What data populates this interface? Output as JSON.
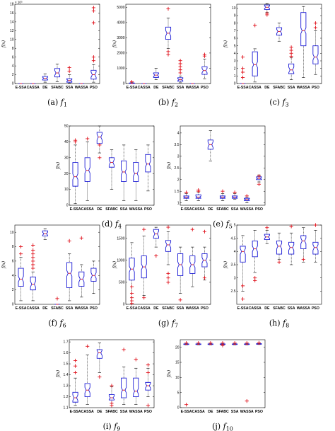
{
  "chart_data": [
    {
      "type": "box",
      "caption": {
        "label": "(a)",
        "func": "f",
        "sub": "1"
      },
      "ylabel": "f(x)",
      "exponent_label": "× 10⁵",
      "ylim": [
        0,
        18
      ],
      "yticks": [
        0,
        2,
        4,
        6,
        8,
        10,
        12,
        14,
        16,
        18
      ],
      "categories": [
        "E-SSA",
        "CASSA",
        "DE",
        "SFABC",
        "SSA",
        "WASSA",
        "PSO"
      ],
      "boxes": [
        {
          "q1": 0,
          "med": 0,
          "q3": 0,
          "lw": 0,
          "uw": 0,
          "outliers": []
        },
        {
          "q1": 0,
          "med": 0,
          "q3": 0,
          "lw": 0,
          "uw": 0,
          "outliers": []
        },
        {
          "q1": 0.8,
          "med": 1.2,
          "q3": 1.6,
          "lw": 0.3,
          "uw": 2.2,
          "outliers": []
        },
        {
          "q1": 1.5,
          "med": 2.4,
          "q3": 3.4,
          "lw": 0.4,
          "uw": 4.4,
          "outliers": []
        },
        {
          "q1": 0.3,
          "med": 0.7,
          "q3": 1.1,
          "lw": 0.1,
          "uw": 2.0,
          "outliers": [
            2.8,
            3.6
          ]
        },
        {
          "q1": 0,
          "med": 0,
          "q3": 0,
          "lw": 0,
          "uw": 0,
          "outliers": []
        },
        {
          "q1": 1.0,
          "med": 2.0,
          "q3": 3.0,
          "lw": 0.3,
          "uw": 4.3,
          "outliers": [
            5.2,
            6.0,
            13.8,
            16.5,
            17.2
          ]
        }
      ]
    },
    {
      "type": "box",
      "caption": {
        "label": "(b)",
        "func": "f",
        "sub": "2"
      },
      "ylabel": "f(x)",
      "ylim": [
        0,
        5200
      ],
      "yticks": [
        0,
        1000,
        2000,
        3000,
        4000,
        5000
      ],
      "categories": [
        "E-SSA",
        "CASSA",
        "DE",
        "SFABC",
        "SSA",
        "WASSA",
        "PSO"
      ],
      "boxes": [
        {
          "q1": 0,
          "med": 20,
          "q3": 40,
          "lw": 0,
          "uw": 60,
          "outliers": [
            110
          ]
        },
        {
          "q1": 0,
          "med": 0,
          "q3": 0,
          "lw": 0,
          "uw": 0,
          "outliers": []
        },
        {
          "q1": 400,
          "med": 550,
          "q3": 700,
          "lw": 250,
          "uw": 1000,
          "outliers": []
        },
        {
          "q1": 2900,
          "med": 3300,
          "q3": 3700,
          "lw": 2300,
          "uw": 4300,
          "outliers": [
            1900,
            2100,
            4900
          ]
        },
        {
          "q1": 150,
          "med": 250,
          "q3": 380,
          "lw": 50,
          "uw": 500,
          "outliers": [
            700,
            900,
            1100,
            1300,
            1500
          ]
        },
        {
          "q1": 0,
          "med": 0,
          "q3": 0,
          "lw": 0,
          "uw": 0,
          "outliers": []
        },
        {
          "q1": 600,
          "med": 850,
          "q3": 1100,
          "lw": 300,
          "uw": 1600,
          "outliers": [
            1800,
            1900
          ]
        }
      ]
    },
    {
      "type": "box",
      "caption": {
        "label": "(c)",
        "func": "f",
        "sub": "3"
      },
      "ylabel": "f(x)",
      "ylim": [
        0,
        10.5
      ],
      "yticks": [
        0,
        1,
        2,
        3,
        4,
        5,
        6,
        7,
        8,
        9,
        10
      ],
      "categories": [
        "E-SSA",
        "CASSA",
        "DE",
        "SFABC",
        "SSA",
        "WASSA",
        "PSO"
      ],
      "boxes": [
        {
          "q1": 0,
          "med": 0,
          "q3": 0,
          "lw": 0,
          "uw": 0,
          "outliers": [
            0.8,
            1.5,
            2.0,
            3.5
          ]
        },
        {
          "q1": 1.0,
          "med": 2.5,
          "q3": 4.2,
          "lw": 0.2,
          "uw": 4.6,
          "outliers": [
            7.7
          ]
        },
        {
          "q1": 9.8,
          "med": 10.1,
          "q3": 10.4,
          "lw": 9.4,
          "uw": 10.6,
          "outliers": [
            9.1,
            9.3
          ]
        },
        {
          "q1": 6.4,
          "med": 6.9,
          "q3": 7.4,
          "lw": 5.6,
          "uw": 8.0,
          "outliers": []
        },
        {
          "q1": 1.3,
          "med": 1.8,
          "q3": 2.6,
          "lw": 0.5,
          "uw": 3.4,
          "outliers": [
            3.6,
            4.0,
            4.4,
            4.8
          ]
        },
        {
          "q1": 5.0,
          "med": 7.0,
          "q3": 9.4,
          "lw": 0.8,
          "uw": 10.2,
          "outliers": []
        },
        {
          "q1": 2.6,
          "med": 3.5,
          "q3": 5.0,
          "lw": 1.2,
          "uw": 7.0,
          "outliers": [
            7.4,
            8.0
          ]
        }
      ]
    },
    {
      "type": "box",
      "caption": {
        "label": "(d)",
        "func": "f",
        "sub": "4"
      },
      "ylabel": "f(x)",
      "ylim": [
        0,
        50
      ],
      "yticks": [
        0,
        10,
        20,
        30,
        40,
        50
      ],
      "categories": [
        "E-SSA",
        "CASSA",
        "DE",
        "SFABC",
        "SSA",
        "WASSA",
        "PSO"
      ],
      "boxes": [
        {
          "q1": 12,
          "med": 18,
          "q3": 27,
          "lw": 1,
          "uw": 38,
          "outliers": [
            40,
            41
          ]
        },
        {
          "q1": 15,
          "med": 22,
          "q3": 30,
          "lw": 3,
          "uw": 40,
          "outliers": [
            42
          ]
        },
        {
          "q1": 39,
          "med": 43,
          "q3": 46,
          "lw": 33,
          "uw": 50,
          "outliers": [
            30,
            38
          ]
        },
        {
          "q1": 24,
          "med": 27,
          "q3": 30,
          "lw": 10,
          "uw": 35,
          "outliers": []
        },
        {
          "q1": 15,
          "med": 21,
          "q3": 28,
          "lw": 3,
          "uw": 38,
          "outliers": [
            51
          ]
        },
        {
          "q1": 15,
          "med": 20,
          "q3": 27,
          "lw": 3,
          "uw": 35,
          "outliers": []
        },
        {
          "q1": 21,
          "med": 26,
          "q3": 32,
          "lw": 9,
          "uw": 38,
          "outliers": []
        }
      ]
    },
    {
      "type": "box",
      "caption": {
        "label": "(e)",
        "func": "f",
        "sub": "5"
      },
      "ylabel": "f(x)",
      "ylim": [
        0.9,
        4.3
      ],
      "yticks": [
        1,
        1.5,
        2,
        2.5,
        3,
        3.5,
        4
      ],
      "categories": [
        "E-SSA",
        "CASSA",
        "DE",
        "SFABC",
        "SSA",
        "WASSA",
        "PSO"
      ],
      "boxes": [
        {
          "q1": 1.2,
          "med": 1.25,
          "q3": 1.3,
          "lw": 1.1,
          "uw": 1.4,
          "outliers": [
            1.45
          ]
        },
        {
          "q1": 1.2,
          "med": 1.25,
          "q3": 1.35,
          "lw": 1.1,
          "uw": 1.45,
          "outliers": [
            1.5,
            1.55
          ]
        },
        {
          "q1": 3.3,
          "med": 3.5,
          "q3": 3.7,
          "lw": 2.8,
          "uw": 4.1,
          "outliers": []
        },
        {
          "q1": 1.2,
          "med": 1.25,
          "q3": 1.3,
          "lw": 1.1,
          "uw": 1.4,
          "outliers": [
            1.5
          ]
        },
        {
          "q1": 1.2,
          "med": 1.25,
          "q3": 1.3,
          "lw": 1.15,
          "uw": 1.4,
          "outliers": [
            1.45
          ]
        },
        {
          "q1": 1.1,
          "med": 1.15,
          "q3": 1.2,
          "lw": 1.0,
          "uw": 1.25,
          "outliers": [
            1.3
          ]
        },
        {
          "q1": 2.0,
          "med": 2.05,
          "q3": 2.12,
          "lw": 1.9,
          "uw": 2.2,
          "outliers": [
            1.8,
            2.15
          ]
        }
      ]
    },
    {
      "type": "box",
      "caption": {
        "label": "(f)",
        "func": "f",
        "sub": "6"
      },
      "ylabel": "f(x)",
      "ylim": [
        0,
        11
      ],
      "yticks": [
        0,
        2,
        4,
        6,
        8,
        10
      ],
      "categories": [
        "E-SSA",
        "CASSA",
        "DE",
        "SFABC",
        "SSA",
        "WASSA",
        "PSO"
      ],
      "boxes": [
        {
          "q1": 2.5,
          "med": 3.5,
          "q3": 5.0,
          "lw": 0.5,
          "uw": 6.5,
          "outliers": [
            7,
            8
          ]
        },
        {
          "q1": 2.0,
          "med": 2.8,
          "q3": 3.8,
          "lw": 0.5,
          "uw": 4.5,
          "outliers": [
            5,
            5.5,
            6,
            6.5,
            7,
            7.5,
            8.2
          ]
        },
        {
          "q1": 9.5,
          "med": 9.8,
          "q3": 10.2,
          "lw": 9.0,
          "uw": 10.5,
          "outliers": []
        },
        {
          "q1": 0,
          "med": 0,
          "q3": 0,
          "lw": 0,
          "uw": 0,
          "outliers": [
            0.8
          ]
        },
        {
          "q1": 2.3,
          "med": 4.3,
          "q3": 5.8,
          "lw": 0.5,
          "uw": 7.0,
          "outliers": [
            8.8
          ]
        },
        {
          "q1": 2.5,
          "med": 3.5,
          "q3": 4.5,
          "lw": 1.0,
          "uw": 5.5,
          "outliers": [
            9.2
          ]
        },
        {
          "q1": 3.2,
          "med": 4.0,
          "q3": 5.0,
          "lw": 1.5,
          "uw": 6.0,
          "outliers": []
        }
      ]
    },
    {
      "type": "box",
      "caption": {
        "label": "(g)",
        "func": "f",
        "sub": "7"
      },
      "ylabel": "f(x)",
      "ylim": [
        0,
        1800
      ],
      "yticks": [
        0,
        500,
        1000,
        1500
      ],
      "categories": [
        "E-SSA",
        "CASSA",
        "DE",
        "SFABC",
        "SSA",
        "WASSA",
        "PSO"
      ],
      "boxes": [
        {
          "q1": 550,
          "med": 800,
          "q3": 1050,
          "lw": 150,
          "uw": 1400,
          "outliers": [
            20,
            80,
            150,
            250,
            400
          ]
        },
        {
          "q1": 600,
          "med": 850,
          "q3": 1100,
          "lw": 200,
          "uw": 1550,
          "outliers": [
            150,
            1700
          ]
        },
        {
          "q1": 1500,
          "med": 1600,
          "q3": 1700,
          "lw": 1300,
          "uw": 1750,
          "outliers": [
            1100
          ]
        },
        {
          "q1": 1200,
          "med": 1350,
          "q3": 1450,
          "lw": 900,
          "uw": 1650,
          "outliers": [
            500,
            600,
            700,
            1750
          ]
        },
        {
          "q1": 650,
          "med": 900,
          "q3": 1150,
          "lw": 250,
          "uw": 1300,
          "outliers": [
            100
          ]
        },
        {
          "q1": 700,
          "med": 900,
          "q3": 1100,
          "lw": 400,
          "uw": 1300,
          "outliers": [
            1700
          ]
        },
        {
          "q1": 850,
          "med": 1000,
          "q3": 1150,
          "lw": 550,
          "uw": 1300,
          "outliers": [
            600,
            1650
          ]
        }
      ]
    },
    {
      "type": "box",
      "caption": {
        "label": "(h)",
        "func": "f",
        "sub": "8"
      },
      "ylabel": "f(x)",
      "ylim": [
        2.0,
        5.0
      ],
      "yticks": [
        2.5,
        3,
        3.5,
        4,
        4.5,
        5
      ],
      "categories": [
        "E-SSA",
        "CASSA",
        "DE",
        "SFABC",
        "SSA",
        "WASSA",
        "PSO"
      ],
      "boxes": [
        {
          "q1": 3.6,
          "med": 4.0,
          "q3": 4.2,
          "lw": 2.5,
          "uw": 4.6,
          "outliers": [
            2.2,
            2.7
          ]
        },
        {
          "q1": 3.8,
          "med": 4.1,
          "q3": 4.4,
          "lw": 3.2,
          "uw": 4.8,
          "outliers": [
            2.9,
            3.0
          ]
        },
        {
          "q1": 4.45,
          "med": 4.55,
          "q3": 4.65,
          "lw": 4.3,
          "uw": 4.8,
          "outliers": [
            4.9
          ]
        },
        {
          "q1": 3.9,
          "med": 4.2,
          "q3": 4.4,
          "lw": 3.7,
          "uw": 4.7,
          "outliers": [
            3.6
          ]
        },
        {
          "q1": 3.9,
          "med": 4.15,
          "q3": 4.35,
          "lw": 3.5,
          "uw": 4.7,
          "outliers": [
            4.95
          ]
        },
        {
          "q1": 4.1,
          "med": 4.4,
          "q3": 4.6,
          "lw": 3.6,
          "uw": 4.9,
          "outliers": [
            3.7
          ]
        },
        {
          "q1": 3.9,
          "med": 4.15,
          "q3": 4.35,
          "lw": 3.6,
          "uw": 4.8,
          "outliers": [
            5.0
          ]
        }
      ]
    },
    {
      "type": "box",
      "caption": {
        "label": "(i)",
        "func": "f",
        "sub": "9"
      },
      "ylabel": "f(x)",
      "ylim": [
        1.1,
        1.72
      ],
      "yticks": [
        1.1,
        1.2,
        1.3,
        1.4,
        1.5,
        1.6,
        1.7
      ],
      "categories": [
        "E-SSA",
        "CASSA",
        "DE",
        "SFABC",
        "SSA",
        "WASSA",
        "PSO"
      ],
      "boxes": [
        {
          "q1": 1.15,
          "med": 1.19,
          "q3": 1.24,
          "lw": 1.12,
          "uw": 1.37,
          "outliers": [
            1.42,
            1.48,
            1.53
          ]
        },
        {
          "q1": 1.2,
          "med": 1.26,
          "q3": 1.32,
          "lw": 1.13,
          "uw": 1.58,
          "outliers": [
            1.66
          ]
        },
        {
          "q1": 1.55,
          "med": 1.6,
          "q3": 1.63,
          "lw": 1.42,
          "uw": 1.69,
          "outliers": [
            1.38
          ]
        },
        {
          "q1": 1.17,
          "med": 1.19,
          "q3": 1.22,
          "lw": 1.14,
          "uw": 1.29,
          "outliers": [
            1.12,
            1.14,
            1.3
          ]
        },
        {
          "q1": 1.19,
          "med": 1.26,
          "q3": 1.37,
          "lw": 1.13,
          "uw": 1.47,
          "outliers": [
            1.63
          ]
        },
        {
          "q1": 1.2,
          "med": 1.25,
          "q3": 1.37,
          "lw": 1.13,
          "uw": 1.46,
          "outliers": [
            1.54
          ]
        },
        {
          "q1": 1.26,
          "med": 1.3,
          "q3": 1.33,
          "lw": 1.2,
          "uw": 1.46,
          "outliers": [
            1.12,
            1.42,
            1.49
          ]
        }
      ]
    },
    {
      "type": "box",
      "caption": {
        "label": "(j)",
        "func": "f",
        "sub": "10"
      },
      "ylabel": "f(x)",
      "ylim": [
        0,
        22.5
      ],
      "yticks": [
        0,
        5,
        10,
        15,
        20
      ],
      "categories": [
        "E-SSA",
        "CASSA",
        "DE",
        "SFABC",
        "SSA",
        "WASSA",
        "PSO"
      ],
      "boxes": [
        {
          "q1": 20.9,
          "med": 21.0,
          "q3": 21.1,
          "lw": 20.8,
          "uw": 21.2,
          "outliers": [
            21.4,
            1.0
          ]
        },
        {
          "q1": 20.9,
          "med": 21.0,
          "q3": 21.1,
          "lw": 20.8,
          "uw": 21.2,
          "outliers": [
            21.4
          ]
        },
        {
          "q1": 20.9,
          "med": 21.0,
          "q3": 21.1,
          "lw": 20.8,
          "uw": 21.2,
          "outliers": [
            21.4
          ]
        },
        {
          "q1": 20.9,
          "med": 21.0,
          "q3": 21.1,
          "lw": 20.8,
          "uw": 21.2,
          "outliers": [
            20.6,
            21.4
          ]
        },
        {
          "q1": 20.9,
          "med": 21.0,
          "q3": 21.1,
          "lw": 20.8,
          "uw": 21.2,
          "outliers": [
            21.4
          ]
        },
        {
          "q1": 20.9,
          "med": 21.0,
          "q3": 21.1,
          "lw": 20.8,
          "uw": 21.2,
          "outliers": [
            21.4,
            2.2
          ]
        },
        {
          "q1": 21.0,
          "med": 21.1,
          "q3": 21.2,
          "lw": 20.9,
          "uw": 21.3,
          "outliers": [
            21.5
          ]
        }
      ]
    }
  ],
  "colors": {
    "box": "#1f1fd6",
    "median": "#e0141e",
    "outlier": "#e0141e",
    "whisker": "#000000",
    "axis": "#000000"
  }
}
